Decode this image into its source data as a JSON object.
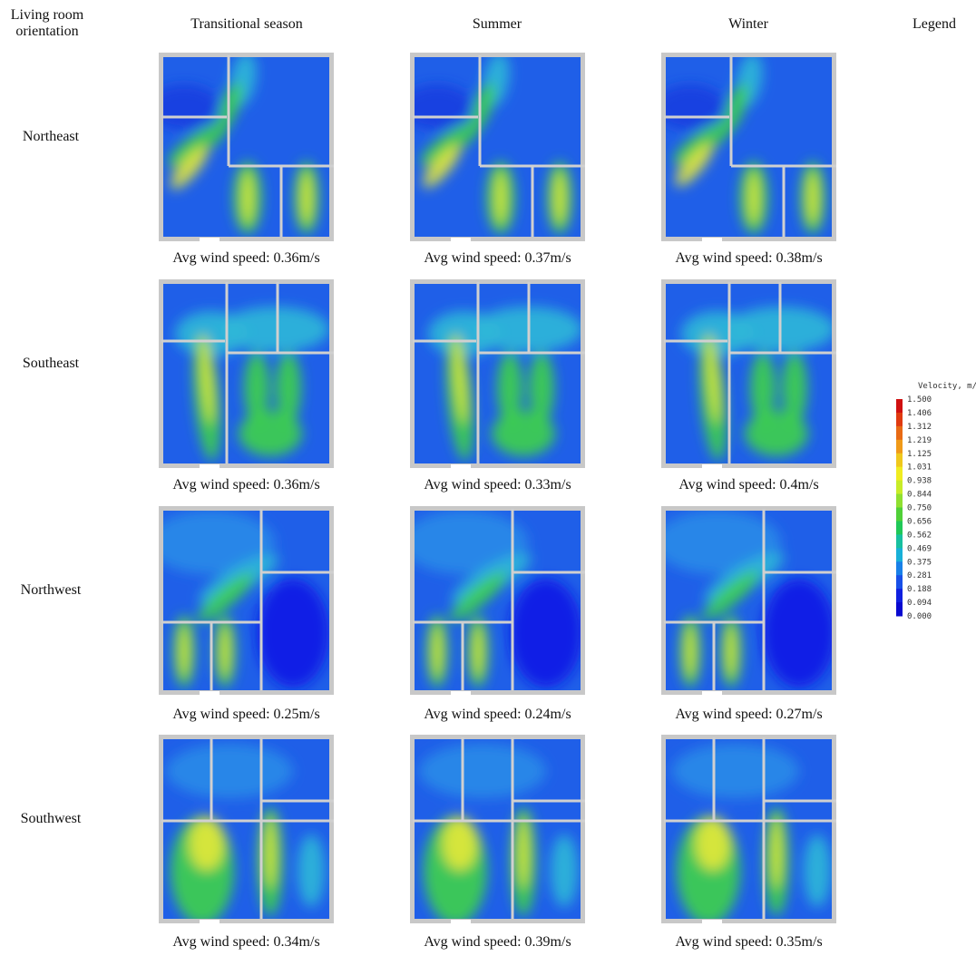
{
  "header": {
    "corner": "Living room orientation",
    "columns": [
      "Transitional season",
      "Summer",
      "Winter"
    ],
    "legend": "Legend"
  },
  "rows": [
    {
      "label": "Northeast",
      "captions": [
        "Avg wind speed: 0.36m/s",
        "Avg wind speed: 0.37m/s",
        "Avg wind speed: 0.38m/s"
      ]
    },
    {
      "label": "Southeast",
      "captions": [
        "Avg wind speed: 0.36m/s",
        "Avg wind speed: 0.33m/s",
        "Avg wind speed: 0.4m/s"
      ]
    },
    {
      "label": "Northwest",
      "captions": [
        "Avg wind speed: 0.25m/s",
        "Avg wind speed: 0.24m/s",
        "Avg wind speed: 0.27m/s"
      ]
    },
    {
      "label": "Southwest",
      "captions": [
        "Avg wind speed: 0.34m/s",
        "Avg wind speed: 0.39m/s",
        "Avg wind speed: 0.35m/s"
      ]
    }
  ],
  "legend": {
    "title": "Velocity, m/s",
    "ticks": [
      "1.500",
      "1.406",
      "1.312",
      "1.219",
      "1.125",
      "1.031",
      "0.938",
      "0.844",
      "0.750",
      "0.656",
      "0.562",
      "0.469",
      "0.375",
      "0.281",
      "0.188",
      "0.094",
      "0.000"
    ]
  }
}
